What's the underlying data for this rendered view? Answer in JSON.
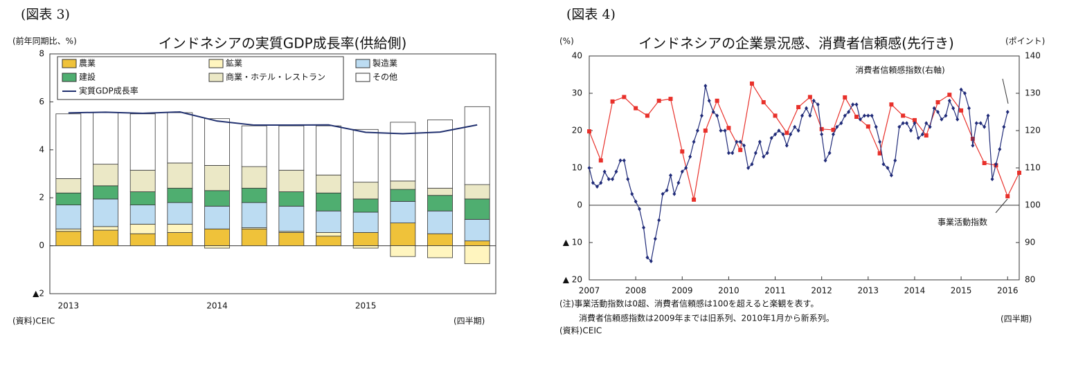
{
  "chart_data": [
    {
      "type": "bar",
      "label": "(図表 3)",
      "title": "インドネシアの実質GDP成長率(供給側)",
      "y_unit": "(前年同期比、%)",
      "source": "(資料)CEIC",
      "period": "(四半期)",
      "categories": [
        "2013",
        null,
        null,
        null,
        "2014",
        null,
        null,
        null,
        "2015",
        null,
        null,
        null
      ],
      "ylim": [
        -2,
        8
      ],
      "yticks": [
        {
          "value": -2,
          "label": "▲2"
        },
        0,
        2,
        4,
        6,
        8
      ],
      "series": [
        {
          "name": "農業",
          "color": "#efc23a",
          "values": [
            0.6,
            0.65,
            0.5,
            0.55,
            0.7,
            0.7,
            0.55,
            0.4,
            0.55,
            0.95,
            0.5,
            0.2
          ]
        },
        {
          "name": "鉱業",
          "color": "#fff5bf",
          "values": [
            0.1,
            0.15,
            0.4,
            0.35,
            -0.1,
            0.05,
            0.05,
            0.15,
            -0.1,
            -0.45,
            -0.5,
            -0.75
          ]
        },
        {
          "name": "製造業",
          "color": "#bcdcf2",
          "values": [
            1.0,
            1.15,
            0.8,
            0.9,
            0.95,
            1.05,
            1.05,
            0.9,
            0.85,
            0.9,
            0.95,
            0.9
          ]
        },
        {
          "name": "建設",
          "color": "#4fae70",
          "values": [
            0.5,
            0.55,
            0.55,
            0.6,
            0.65,
            0.6,
            0.6,
            0.75,
            0.55,
            0.5,
            0.65,
            0.85
          ]
        },
        {
          "name": "商業・ホテル・レストラン",
          "color": "#ebe8c6",
          "values": [
            0.6,
            0.9,
            0.9,
            1.05,
            1.05,
            0.9,
            0.9,
            0.75,
            0.7,
            0.35,
            0.3,
            0.6
          ]
        },
        {
          "name": "その他",
          "color": "#ffffff",
          "values": [
            2.7,
            2.15,
            2.35,
            2.1,
            1.95,
            1.7,
            1.85,
            2.05,
            2.2,
            2.45,
            2.85,
            3.25
          ]
        },
        {
          "name": "実質GDP成長率",
          "type": "line",
          "color": "#1f2f6e",
          "values": [
            5.54,
            5.57,
            5.52,
            5.58,
            5.2,
            5.03,
            5.03,
            5.04,
            4.73,
            4.67,
            4.74,
            5.04
          ]
        }
      ]
    },
    {
      "type": "line",
      "label": "(図表 4)",
      "title": "インドネシアの企業景況感、消費者信頼感(先行き)",
      "y_unit": "(%)",
      "y2_unit": "(ポイント)",
      "annotations": [
        "消費者信頼感指数(右軸)",
        "事業活動指数"
      ],
      "notes": [
        "(注)事業活動指数は0超、消費者信頼感は100を超えると楽観を表す。",
        "消費者信頼感指数は2009年までは旧系列、2010年1月から新系列。"
      ],
      "source": "(資料)CEIC",
      "period": "(四半期)",
      "xlim": [
        2007,
        2016.25
      ],
      "xticks": [
        2007,
        2008,
        2009,
        2010,
        2011,
        2012,
        2013,
        2014,
        2015,
        2016
      ],
      "ylim": [
        -20,
        40
      ],
      "yticks": [
        {
          "value": -20,
          "label": "▲ 20"
        },
        {
          "value": -10,
          "label": "▲ 10"
        },
        0,
        10,
        20,
        30,
        40
      ],
      "y2lim": [
        80,
        140
      ],
      "y2ticks": [
        80,
        90,
        100,
        110,
        120,
        130,
        140
      ],
      "series": [
        {
          "name": "事業活動指数",
          "color": "#e8302a",
          "marker": "square",
          "x": [
            2007,
            2007.25,
            2007.5,
            2007.75,
            2008,
            2008.25,
            2008.5,
            2008.75,
            2009,
            2009.25,
            2009.5,
            2009.75,
            2010,
            2010.25,
            2010.5,
            2010.75,
            2011,
            2011.25,
            2011.5,
            2011.75,
            2012,
            2012.25,
            2012.5,
            2012.75,
            2013,
            2013.25,
            2013.5,
            2013.75,
            2014,
            2014.25,
            2014.5,
            2014.75,
            2015,
            2015.25,
            2015.5,
            2015.75,
            2016,
            2016.25
          ],
          "values": [
            19.8,
            12,
            27.8,
            29,
            26,
            24,
            28,
            28.5,
            14.4,
            1.5,
            20,
            28,
            20.7,
            14.8,
            32.6,
            27.6,
            24,
            19.4,
            26.3,
            29,
            20.4,
            20.2,
            28.9,
            23.7,
            21.1,
            13.9,
            27,
            24,
            22.8,
            18.7,
            27.6,
            29.6,
            25.4,
            17.8,
            11.3,
            10.7,
            2.4,
            8.7
          ]
        },
        {
          "name": "消費者信頼感指数",
          "color": "#1f2a78",
          "marker": "diamond",
          "axis": "y2",
          "x": [
            2007,
            2007.08,
            2007.17,
            2007.25,
            2007.33,
            2007.42,
            2007.5,
            2007.58,
            2007.67,
            2007.75,
            2007.83,
            2007.92,
            2008,
            2008.08,
            2008.17,
            2008.25,
            2008.33,
            2008.42,
            2008.5,
            2008.58,
            2008.67,
            2008.75,
            2008.83,
            2008.92,
            2009,
            2009.08,
            2009.17,
            2009.25,
            2009.33,
            2009.42,
            2009.5,
            2009.58,
            2009.67,
            2009.75,
            2009.83,
            2009.92,
            2010,
            2010.08,
            2010.17,
            2010.25,
            2010.33,
            2010.42,
            2010.5,
            2010.58,
            2010.67,
            2010.75,
            2010.83,
            2010.92,
            2011,
            2011.08,
            2011.17,
            2011.25,
            2011.33,
            2011.42,
            2011.5,
            2011.58,
            2011.67,
            2011.75,
            2011.83,
            2011.92,
            2012,
            2012.08,
            2012.17,
            2012.25,
            2012.33,
            2012.42,
            2012.5,
            2012.58,
            2012.67,
            2012.75,
            2012.83,
            2012.92,
            2013,
            2013.08,
            2013.17,
            2013.25,
            2013.33,
            2013.42,
            2013.5,
            2013.58,
            2013.67,
            2013.75,
            2013.83,
            2013.92,
            2014,
            2014.08,
            2014.17,
            2014.25,
            2014.33,
            2014.42,
            2014.5,
            2014.58,
            2014.67,
            2014.75,
            2014.83,
            2014.92,
            2015,
            2015.08,
            2015.17,
            2015.25,
            2015.33,
            2015.42,
            2015.5,
            2015.58,
            2015.67,
            2015.75,
            2015.83,
            2015.92,
            2016
          ],
          "values": [
            110,
            106,
            105,
            106,
            109,
            107,
            107,
            109,
            112,
            112,
            107,
            103,
            101,
            99,
            94,
            86,
            85,
            91,
            96,
            103,
            104,
            108,
            103,
            106,
            109,
            110,
            113,
            117,
            120,
            124,
            132,
            128,
            125,
            124,
            120,
            120,
            114,
            114,
            117,
            117,
            116,
            110,
            111,
            114,
            117,
            113,
            114,
            118,
            119,
            120,
            119,
            116,
            119,
            121,
            120,
            124,
            126,
            124,
            128,
            127,
            119,
            112,
            114,
            119,
            121,
            122,
            124,
            125,
            127,
            127,
            123,
            124,
            124,
            124,
            121,
            117,
            111,
            110,
            108,
            112,
            121,
            122,
            122,
            120,
            122,
            118,
            119,
            122,
            121,
            126,
            125,
            123,
            124,
            128,
            126,
            123,
            131,
            130,
            126,
            116,
            122,
            122,
            121,
            124,
            107,
            111,
            115,
            121,
            125
          ]
        }
      ]
    }
  ]
}
